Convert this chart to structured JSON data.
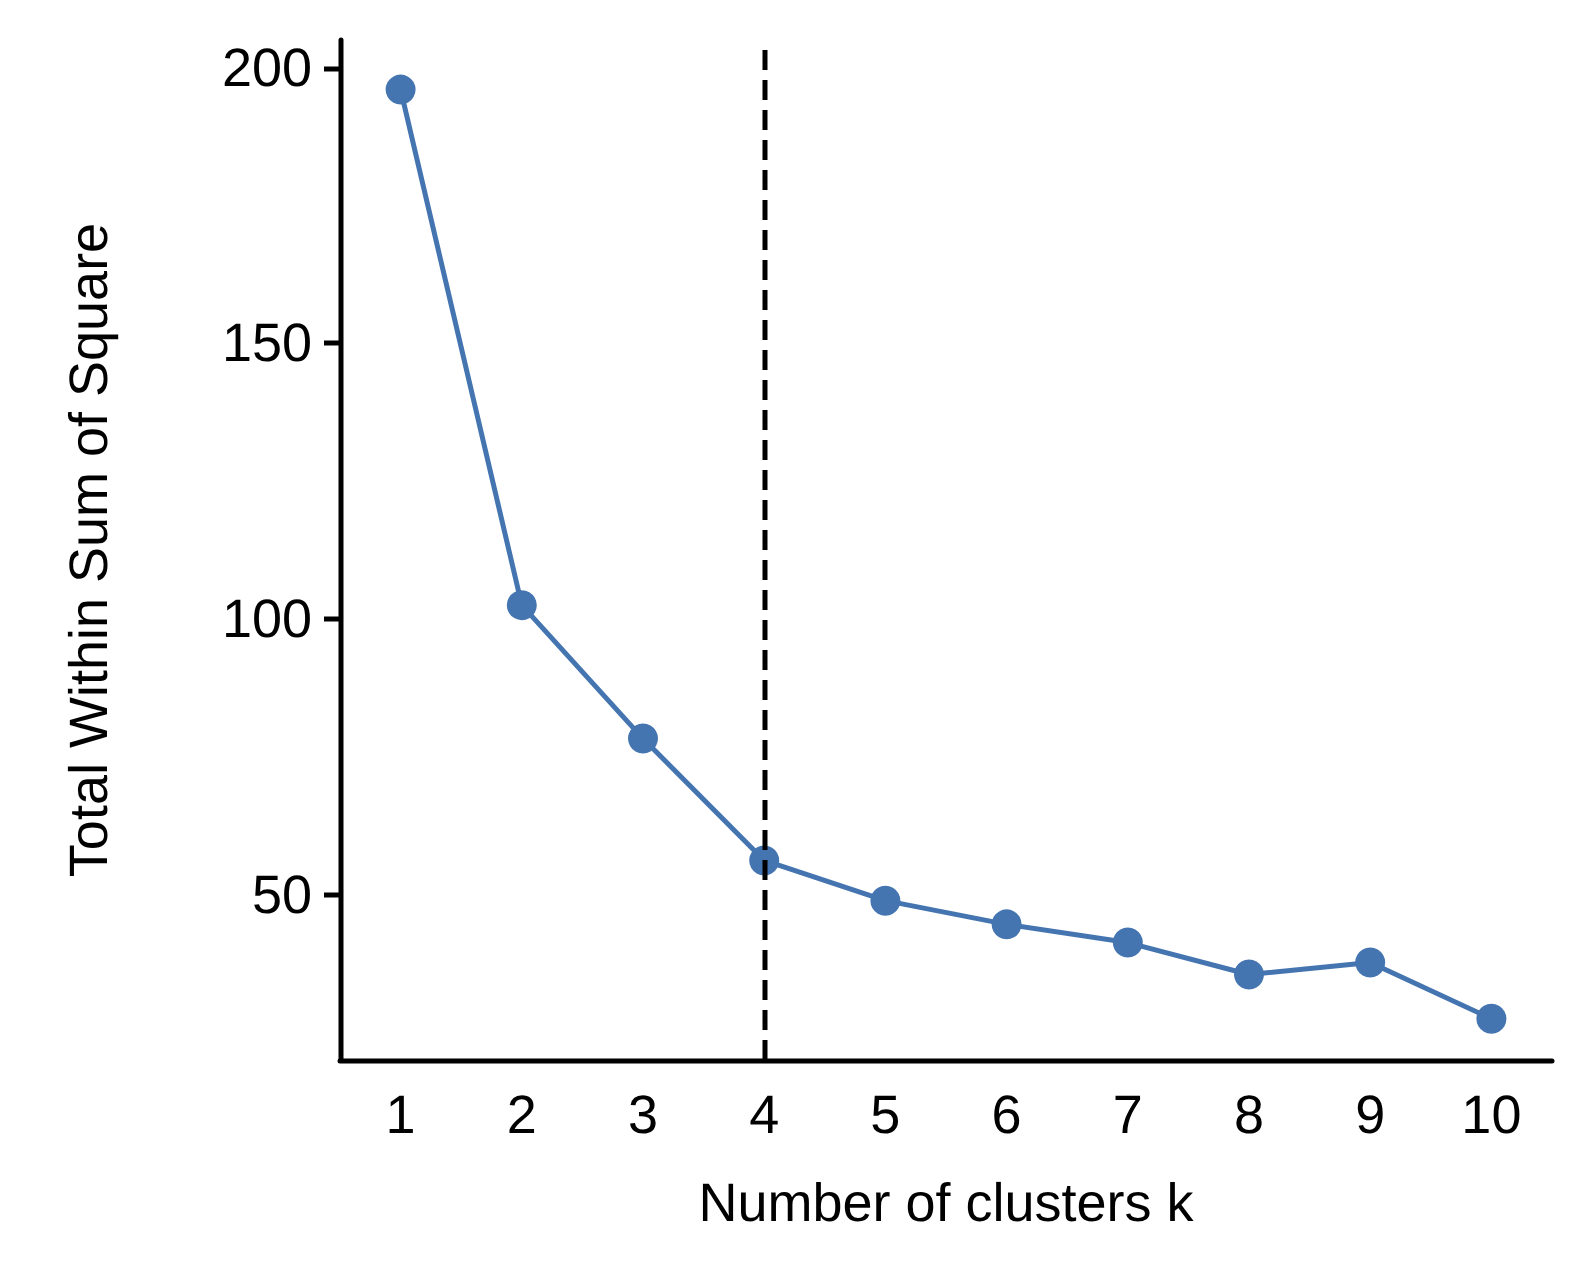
{
  "chart_data": {
    "type": "line",
    "xlabel": "Number of clusters k",
    "ylabel": "Total Within Sum of Square",
    "categories": [
      "1",
      "2",
      "3",
      "4",
      "5",
      "6",
      "7",
      "8",
      "9",
      "10"
    ],
    "series": [
      {
        "color": "#4575b0",
        "values": [
          196,
          102.5,
          78.3,
          56.2,
          48.9,
          44.6,
          41.3,
          35.5,
          37.7,
          27.5
        ]
      }
    ],
    "ylim": [
      20,
      205
    ],
    "yticks": [
      50,
      100,
      150,
      200
    ],
    "grid": false,
    "marker": "circle",
    "line_style": "solid",
    "ref_lines": [
      {
        "axis": "x",
        "value": "4",
        "color": "#000000",
        "line_style": "dashed"
      }
    ]
  }
}
